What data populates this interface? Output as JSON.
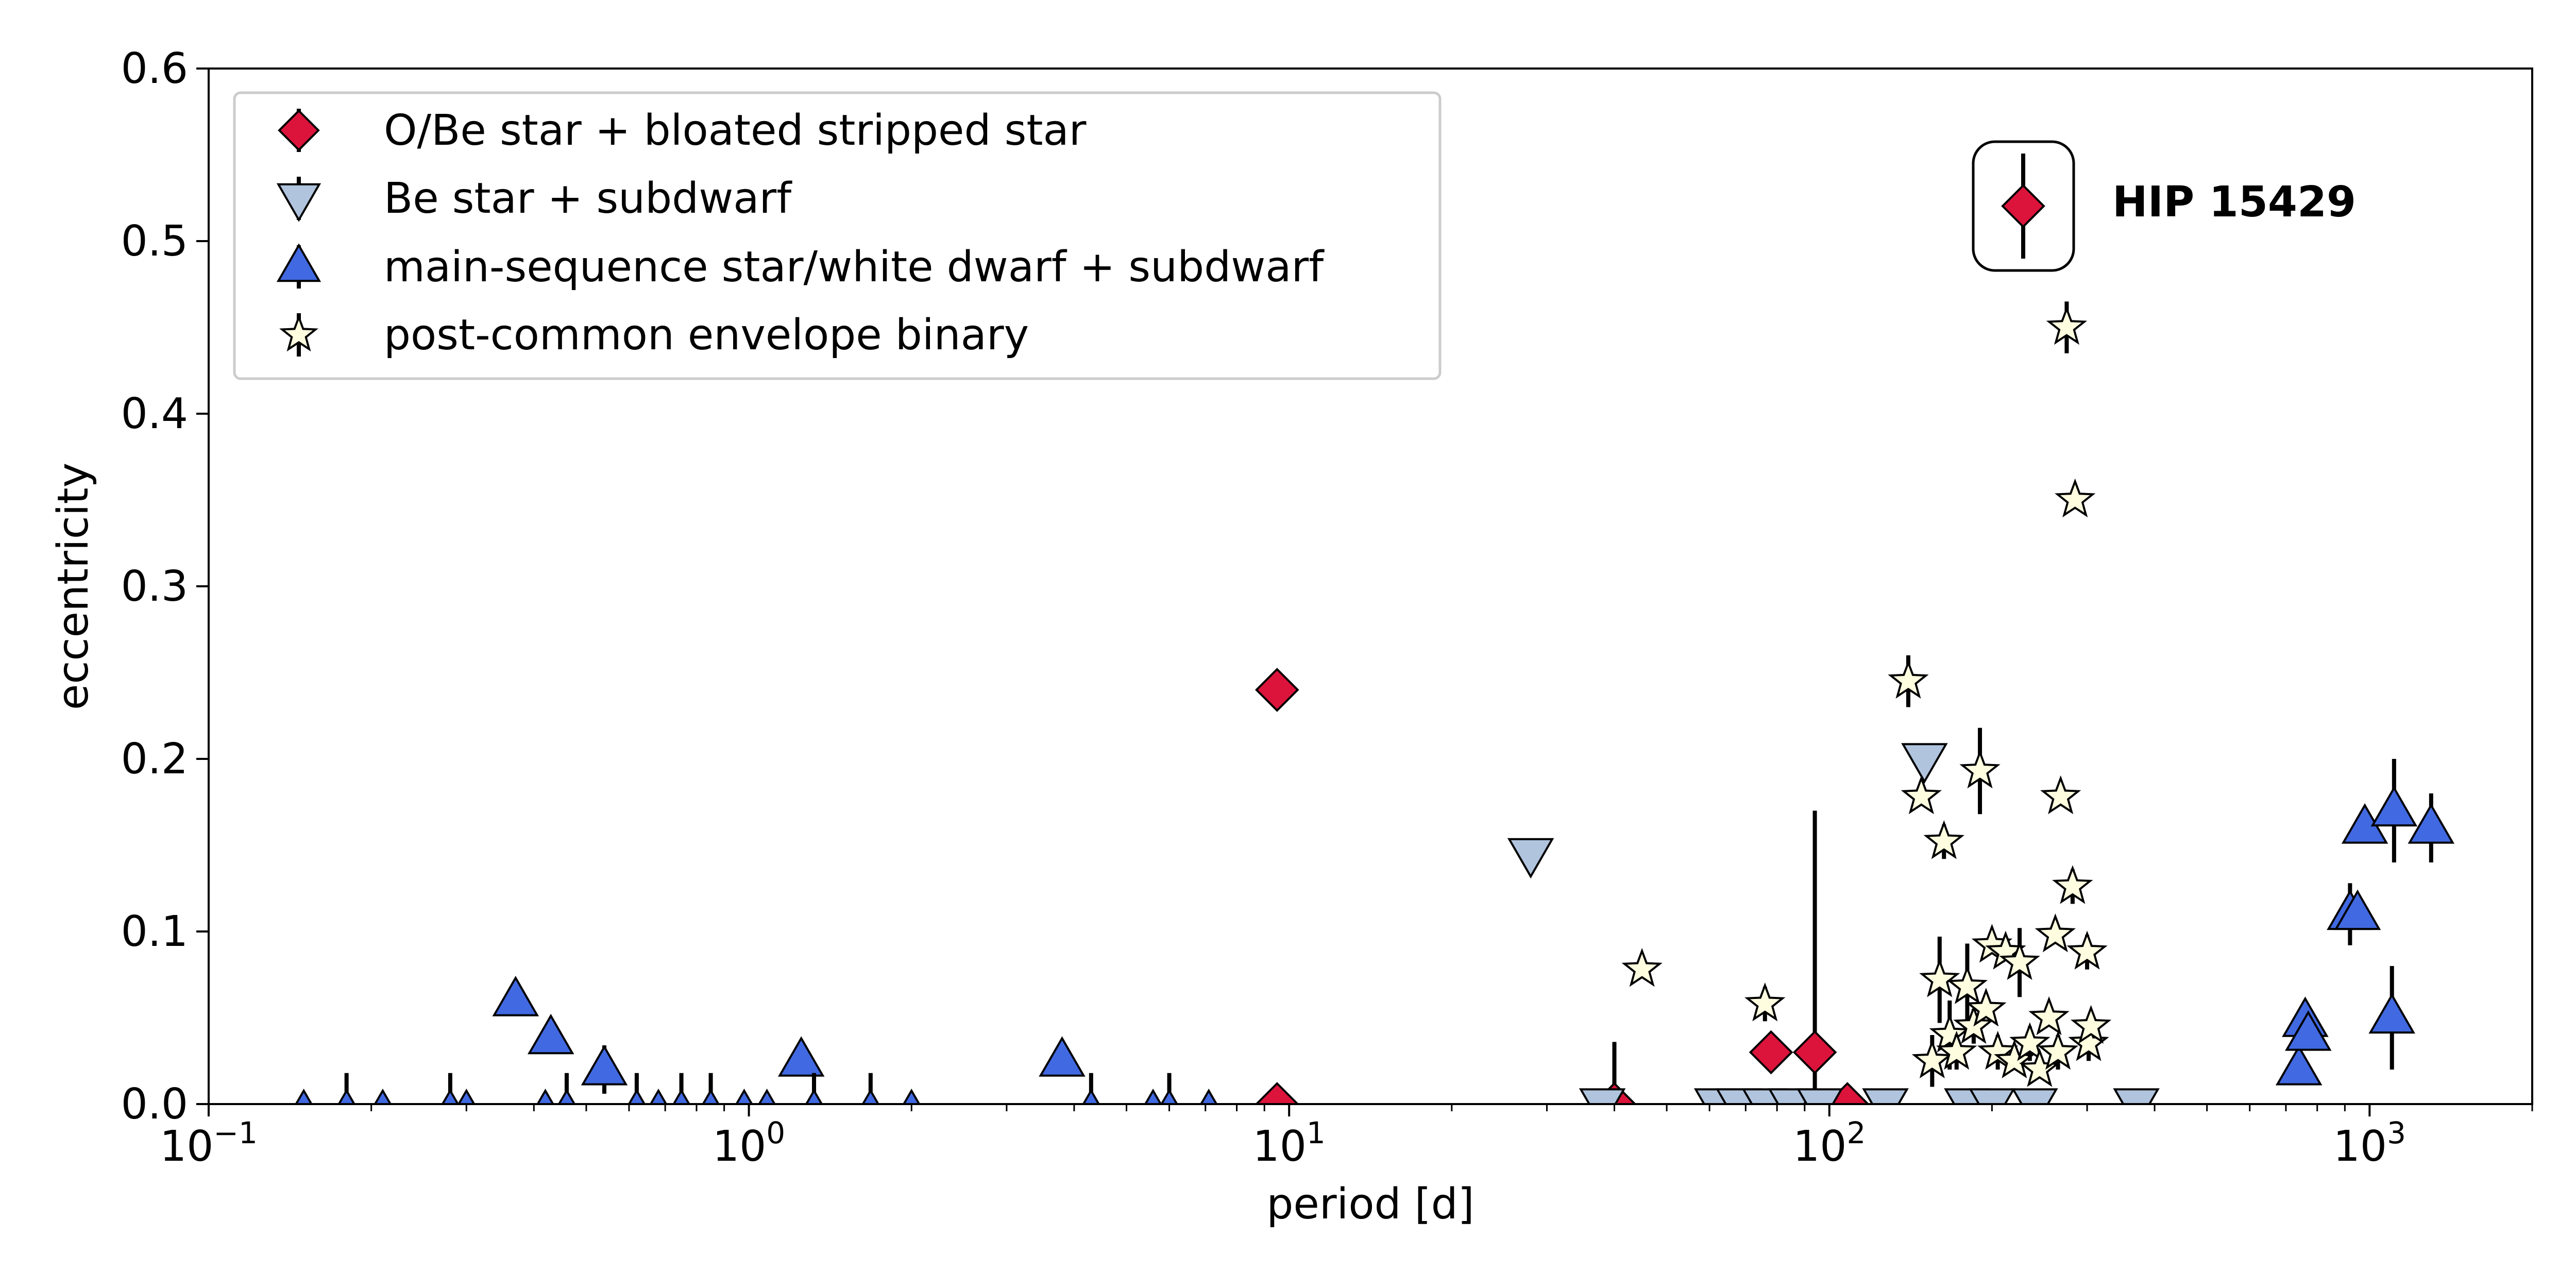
{
  "chart_data": {
    "type": "scatter",
    "xlabel": "period [d]",
    "ylabel": "eccentricity",
    "xscale": "log",
    "xlim": [
      0.1,
      2000
    ],
    "ylim": [
      0,
      0.6
    ],
    "x_tick_base": "10",
    "x_ticks": [
      {
        "value": 0.1,
        "exp": "−1"
      },
      {
        "value": 1,
        "exp": "0"
      },
      {
        "value": 10,
        "exp": "1"
      },
      {
        "value": 100,
        "exp": "2"
      },
      {
        "value": 1000,
        "exp": "3"
      }
    ],
    "y_ticks": [
      {
        "value": 0.0,
        "label": "0.0"
      },
      {
        "value": 0.1,
        "label": "0.1"
      },
      {
        "value": 0.2,
        "label": "0.2"
      },
      {
        "value": 0.3,
        "label": "0.3"
      },
      {
        "value": 0.4,
        "label": "0.4"
      },
      {
        "value": 0.5,
        "label": "0.5"
      },
      {
        "value": 0.6,
        "label": "0.6"
      }
    ],
    "grid": false,
    "legend_position": "top-left",
    "annotation": {
      "text": "HIP 15429",
      "marker": "diamond",
      "color": "#dc143c",
      "e": 0.52,
      "err": 0.03
    },
    "series": [
      {
        "name": "O/Be star + bloated stripped star",
        "marker": "diamond",
        "color": "#dc143c",
        "points": [
          {
            "p": 9.5,
            "e": 0.24,
            "err": 0.0
          },
          {
            "p": 9.5,
            "e": 0.0,
            "err": 0.0
          },
          {
            "p": 40,
            "e": 0.0,
            "err": 0.036
          },
          {
            "p": 78,
            "e": 0.03,
            "err": 0.0
          },
          {
            "p": 94,
            "e": 0.03,
            "err": 0.14
          },
          {
            "p": 108,
            "e": 0.0,
            "err": 0.0
          }
        ]
      },
      {
        "name": "Be star + subdwarf",
        "marker": "triangle-down",
        "color": "#b0c4de",
        "points": [
          {
            "p": 28,
            "e": 0.145,
            "err": 0.0
          },
          {
            "p": 38,
            "e": 0.0,
            "err": 0.0
          },
          {
            "p": 62,
            "e": 0.0,
            "err": 0.0
          },
          {
            "p": 68,
            "e": 0.0,
            "err": 0.0
          },
          {
            "p": 76,
            "e": 0.0,
            "err": 0.0
          },
          {
            "p": 85,
            "e": 0.0,
            "err": 0.0
          },
          {
            "p": 96,
            "e": 0.0,
            "err": 0.0
          },
          {
            "p": 127,
            "e": 0.0,
            "err": 0.0
          },
          {
            "p": 150,
            "e": 0.2,
            "err": 0.0
          },
          {
            "p": 180,
            "e": 0.0,
            "err": 0.0
          },
          {
            "p": 200,
            "e": 0.0,
            "err": 0.0
          },
          {
            "p": 240,
            "e": 0.0,
            "err": 0.0
          },
          {
            "p": 370,
            "e": 0.0,
            "err": 0.0
          }
        ]
      },
      {
        "name": "main-sequence star/white dwarf + subdwarf",
        "marker": "triangle-up",
        "color": "#4169e1",
        "points": [
          {
            "p": 0.15,
            "e": 0.0,
            "err": 0.0
          },
          {
            "p": 0.18,
            "e": 0.0,
            "err": 0.018
          },
          {
            "p": 0.21,
            "e": 0.0,
            "err": 0.0
          },
          {
            "p": 0.28,
            "e": 0.0,
            "err": 0.018
          },
          {
            "p": 0.3,
            "e": 0.0,
            "err": 0.0
          },
          {
            "p": 0.37,
            "e": 0.06,
            "err": 0.0
          },
          {
            "p": 0.42,
            "e": 0.0,
            "err": 0.0
          },
          {
            "p": 0.43,
            "e": 0.038,
            "err": 0.0
          },
          {
            "p": 0.46,
            "e": 0.0,
            "err": 0.018
          },
          {
            "p": 0.54,
            "e": 0.02,
            "err": 0.014
          },
          {
            "p": 0.62,
            "e": 0.0,
            "err": 0.018
          },
          {
            "p": 0.68,
            "e": 0.0,
            "err": 0.0
          },
          {
            "p": 0.75,
            "e": 0.0,
            "err": 0.018
          },
          {
            "p": 0.85,
            "e": 0.0,
            "err": 0.018
          },
          {
            "p": 0.98,
            "e": 0.0,
            "err": 0.0
          },
          {
            "p": 1.08,
            "e": 0.0,
            "err": 0.0
          },
          {
            "p": 1.25,
            "e": 0.025,
            "err": 0.0
          },
          {
            "p": 1.32,
            "e": 0.0,
            "err": 0.018
          },
          {
            "p": 1.68,
            "e": 0.0,
            "err": 0.018
          },
          {
            "p": 2.0,
            "e": 0.0,
            "err": 0.0
          },
          {
            "p": 3.8,
            "e": 0.025,
            "err": 0.0
          },
          {
            "p": 4.3,
            "e": 0.0,
            "err": 0.018
          },
          {
            "p": 5.6,
            "e": 0.0,
            "err": 0.0
          },
          {
            "p": 6.0,
            "e": 0.0,
            "err": 0.018
          },
          {
            "p": 7.1,
            "e": 0.0,
            "err": 0.0
          },
          {
            "p": 740,
            "e": 0.02,
            "err": 0.0
          },
          {
            "p": 760,
            "e": 0.048,
            "err": 0.0
          },
          {
            "p": 770,
            "e": 0.04,
            "err": 0.0
          },
          {
            "p": 920,
            "e": 0.11,
            "err": 0.018
          },
          {
            "p": 950,
            "e": 0.11,
            "err": 0.0
          },
          {
            "p": 980,
            "e": 0.16,
            "err": 0.0
          },
          {
            "p": 1100,
            "e": 0.05,
            "err": 0.03
          },
          {
            "p": 1110,
            "e": 0.17,
            "err": 0.03
          },
          {
            "p": 1300,
            "e": 0.16,
            "err": 0.02
          }
        ]
      },
      {
        "name": "post-common envelope binary",
        "marker": "star",
        "color": "#fffde0",
        "points": [
          {
            "p": 45,
            "e": 0.078,
            "err": 0.0
          },
          {
            "p": 76,
            "e": 0.058,
            "err": 0.01
          },
          {
            "p": 140,
            "e": 0.245,
            "err": 0.015
          },
          {
            "p": 148,
            "e": 0.178,
            "err": 0.0
          },
          {
            "p": 155,
            "e": 0.025,
            "err": 0.015
          },
          {
            "p": 160,
            "e": 0.072,
            "err": 0.025
          },
          {
            "p": 163,
            "e": 0.152,
            "err": 0.01
          },
          {
            "p": 167,
            "e": 0.04,
            "err": 0.02
          },
          {
            "p": 172,
            "e": 0.03,
            "err": 0.01
          },
          {
            "p": 180,
            "e": 0.068,
            "err": 0.025
          },
          {
            "p": 185,
            "e": 0.045,
            "err": 0.01
          },
          {
            "p": 190,
            "e": 0.193,
            "err": 0.025
          },
          {
            "p": 195,
            "e": 0.055,
            "err": 0.0
          },
          {
            "p": 200,
            "e": 0.092,
            "err": 0.0
          },
          {
            "p": 205,
            "e": 0.03,
            "err": 0.01
          },
          {
            "p": 212,
            "e": 0.088,
            "err": 0.0
          },
          {
            "p": 220,
            "e": 0.025,
            "err": 0.0
          },
          {
            "p": 225,
            "e": 0.082,
            "err": 0.02
          },
          {
            "p": 235,
            "e": 0.035,
            "err": 0.01
          },
          {
            "p": 245,
            "e": 0.02,
            "err": 0.0
          },
          {
            "p": 255,
            "e": 0.05,
            "err": 0.0
          },
          {
            "p": 262,
            "e": 0.098,
            "err": 0.0
          },
          {
            "p": 265,
            "e": 0.03,
            "err": 0.01
          },
          {
            "p": 268,
            "e": 0.178,
            "err": 0.0
          },
          {
            "p": 275,
            "e": 0.45,
            "err": 0.015
          },
          {
            "p": 282,
            "e": 0.126,
            "err": 0.01
          },
          {
            "p": 285,
            "e": 0.35,
            "err": 0.0
          },
          {
            "p": 300,
            "e": 0.088,
            "err": 0.01
          },
          {
            "p": 302,
            "e": 0.035,
            "err": 0.01
          },
          {
            "p": 305,
            "e": 0.045,
            "err": 0.0
          }
        ]
      }
    ]
  }
}
